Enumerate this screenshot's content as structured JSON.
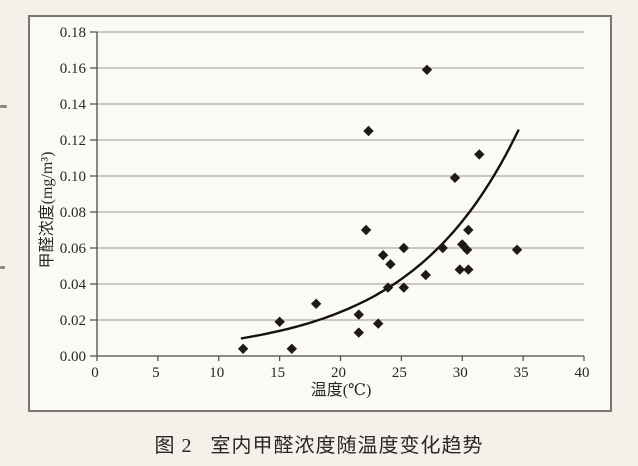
{
  "figure": {
    "caption_prefix": "图 2",
    "caption_title": "室内甲醛浓度随温度变化趋势"
  },
  "chart_data": {
    "type": "scatter",
    "title": "",
    "xlabel": "温度(℃)",
    "ylabel": "甲醛浓度(mg/m³)",
    "xlim": [
      0,
      40
    ],
    "ylim": [
      0,
      0.18
    ],
    "x_ticks": [
      0,
      5,
      10,
      15,
      20,
      25,
      30,
      35,
      40
    ],
    "y_ticks": [
      0,
      0.02,
      0.04,
      0.06,
      0.08,
      0.1,
      0.12,
      0.14,
      0.16,
      0.18
    ],
    "grid": "horizontal-only",
    "legend": "none",
    "marker": "filled-diamond",
    "marker_color": "#1d1a17",
    "grid_color": "#9b9791",
    "axis_color": "#4d4a44",
    "points": [
      [
        12,
        0.004
      ],
      [
        15,
        0.019
      ],
      [
        16,
        0.004
      ],
      [
        18,
        0.029
      ],
      [
        21.5,
        0.023
      ],
      [
        21.5,
        0.013
      ],
      [
        23.1,
        0.018
      ],
      [
        23.9,
        0.038
      ],
      [
        25.2,
        0.038
      ],
      [
        22.1,
        0.07
      ],
      [
        22.3,
        0.125
      ],
      [
        23.5,
        0.056
      ],
      [
        24.1,
        0.051
      ],
      [
        25.2,
        0.06
      ],
      [
        27.0,
        0.045
      ],
      [
        27.1,
        0.159
      ],
      [
        28.4,
        0.06
      ],
      [
        29.4,
        0.099
      ],
      [
        29.8,
        0.048
      ],
      [
        30.5,
        0.048
      ],
      [
        30.0,
        0.062
      ],
      [
        30.4,
        0.059
      ],
      [
        30.5,
        0.07
      ],
      [
        31.4,
        0.112
      ],
      [
        34.5,
        0.059
      ]
    ],
    "trend": {
      "type": "exponential",
      "equation": "c = a * exp(b * t)",
      "a": 0.0026,
      "b": 0.112,
      "t_start": 11.9,
      "t_end": 34.6,
      "color": "#15120e",
      "width": 2.4
    }
  }
}
